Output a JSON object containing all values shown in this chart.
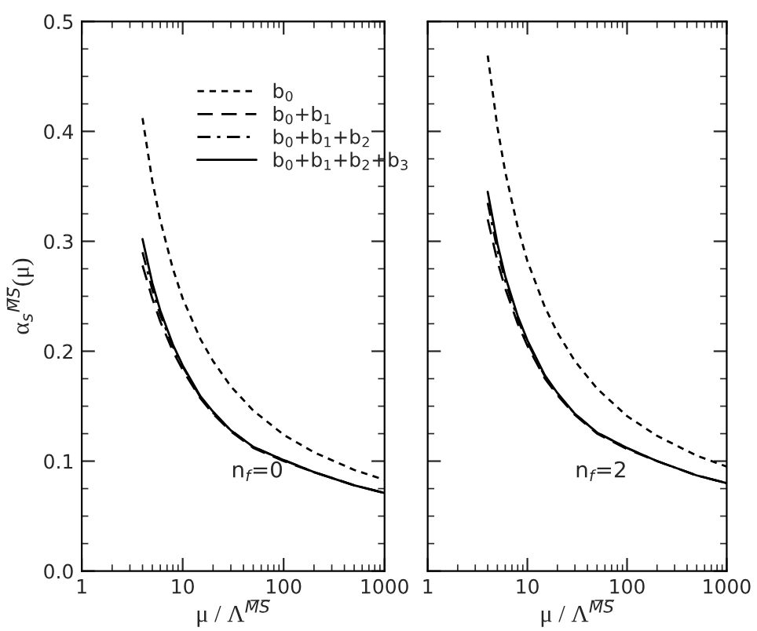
{
  "chart_data": [
    {
      "type": "line",
      "xlabel": "μ / Λ$^{M̅S̅}$",
      "ylabel": "α$_{s}$$^{M̅S̅}$(μ)",
      "log": "x",
      "xlim": [
        1,
        1000
      ],
      "xticks": [
        1,
        10,
        100,
        1000
      ],
      "ylim": [
        0,
        0.5
      ],
      "yticks": [
        {
          "value": 0,
          "label": "0.0"
        },
        0.1,
        0.2,
        0.3,
        0.4,
        0.5
      ],
      "grid": false,
      "legend": "top right",
      "marker": "none",
      "x": [
        4,
        5,
        6,
        8,
        10,
        15,
        20,
        30,
        50,
        100,
        200,
        500,
        1000
      ],
      "annotations": [
        "n$_{f}$=0"
      ],
      "series": [
        {
          "name": "b$_{0}$",
          "color": "#000000",
          "line_style": "dotted",
          "values": [
            0.412,
            0.355,
            0.319,
            0.275,
            0.248,
            0.211,
            0.191,
            0.168,
            0.146,
            0.124,
            0.108,
            0.092,
            0.083
          ]
        },
        {
          "name": "b$_{0}$+b$_{1}$",
          "color": "#000000",
          "line_style": "dashed",
          "values": [
            0.278,
            0.248,
            0.227,
            0.2,
            0.183,
            0.157,
            0.143,
            0.127,
            0.112,
            0.1,
            0.09,
            0.078,
            0.071
          ]
        },
        {
          "name": "b$_{0}$+b$_{1}$+b$_{2}$",
          "color": "#000000",
          "line_style": "dashdot",
          "values": [
            0.29,
            0.256,
            0.233,
            0.204,
            0.186,
            0.158,
            0.144,
            0.128,
            0.113,
            0.101,
            0.09,
            0.078,
            0.071
          ]
        },
        {
          "name": "b$_{0}$+b$_{1}$+b$_{2}$+b$_{3}$",
          "color": "#000000",
          "line_style": "solid",
          "values": [
            0.302,
            0.262,
            0.237,
            0.206,
            0.187,
            0.159,
            0.145,
            0.128,
            0.113,
            0.101,
            0.09,
            0.078,
            0.071
          ]
        }
      ]
    },
    {
      "type": "line",
      "xlabel": "μ / Λ$^{M̅S̅}$",
      "log": "x",
      "xlim": [
        1,
        1000
      ],
      "xticks": [
        1,
        10,
        100,
        1000
      ],
      "ylim": [
        0,
        0.5
      ],
      "yticks": [
        0,
        0.1,
        0.2,
        0.3,
        0.4,
        0.5
      ],
      "tick_labels": "x",
      "grid": false,
      "marker": "none",
      "x": [
        4,
        5,
        6,
        8,
        10,
        15,
        20,
        30,
        50,
        100,
        200,
        500,
        1000
      ],
      "annotations": [
        "n$_{f}$=2"
      ],
      "series": [
        {
          "color": "#000000",
          "line_style": "dotted",
          "values": [
            0.469,
            0.404,
            0.363,
            0.313,
            0.282,
            0.24,
            0.217,
            0.191,
            0.166,
            0.141,
            0.123,
            0.105,
            0.095
          ]
        },
        {
          "color": "#000000",
          "line_style": "dashed",
          "values": [
            0.32,
            0.282,
            0.257,
            0.225,
            0.205,
            0.175,
            0.16,
            0.142,
            0.125,
            0.111,
            0.1,
            0.087,
            0.08
          ]
        },
        {
          "color": "#000000",
          "line_style": "dashdot",
          "values": [
            0.335,
            0.292,
            0.264,
            0.229,
            0.208,
            0.177,
            0.161,
            0.143,
            0.126,
            0.112,
            0.1,
            0.087,
            0.08
          ]
        },
        {
          "color": "#000000",
          "line_style": "solid",
          "values": [
            0.345,
            0.298,
            0.268,
            0.232,
            0.21,
            0.178,
            0.162,
            0.143,
            0.126,
            0.112,
            0.1,
            0.087,
            0.08
          ]
        }
      ]
    }
  ]
}
